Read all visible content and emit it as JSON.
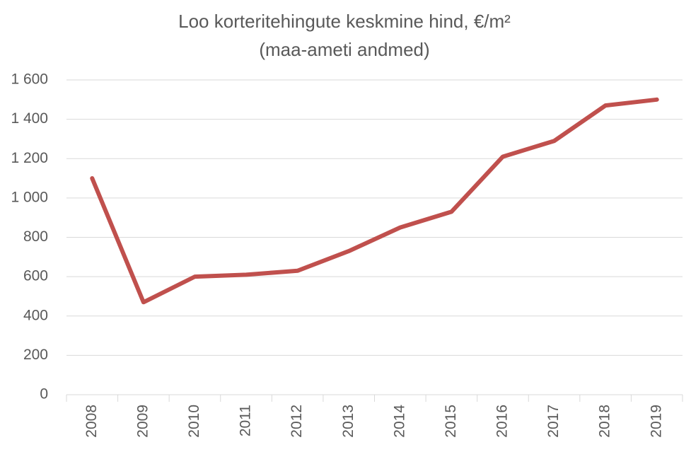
{
  "chart_data": {
    "type": "line",
    "title": "Loo korteritehingute keskmine hind, €/m²",
    "subtitle": "(maa-ameti andmed)",
    "categories": [
      "2008",
      "2009",
      "2010",
      "2011",
      "2012",
      "2013",
      "2014",
      "2015",
      "2016",
      "2017",
      "2018",
      "2019"
    ],
    "series": [
      {
        "name": "Keskmine hind",
        "color": "#c0504d",
        "values": [
          1100,
          470,
          600,
          610,
          630,
          730,
          850,
          930,
          1210,
          1290,
          1470,
          1500
        ]
      }
    ],
    "ylim": [
      0,
      1600
    ],
    "yticks": [
      0,
      200,
      400,
      600,
      800,
      {
        "value": 1000,
        "label": "1 000"
      },
      {
        "value": 1200,
        "label": "1 200"
      },
      {
        "value": 1400,
        "label": "1 400"
      },
      {
        "value": 1600,
        "label": "1 600"
      }
    ],
    "grid": true
  }
}
